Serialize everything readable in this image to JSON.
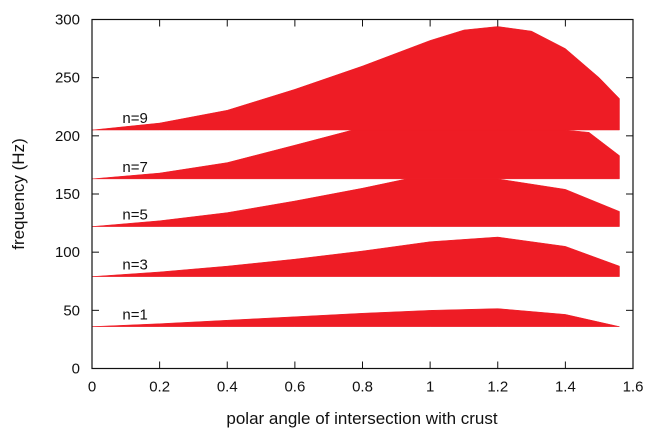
{
  "chart_data": {
    "type": "area",
    "xlabel": "polar angle of intersection with crust",
    "ylabel": "frequency (Hz)",
    "xlim": [
      0,
      1.6
    ],
    "ylim": [
      0,
      300
    ],
    "xticks": [
      "0",
      "0.2",
      "0.4",
      "0.6",
      "0.8",
      "1",
      "1.2",
      "1.4",
      "1.6"
    ],
    "yticks": [
      "0",
      "50",
      "100",
      "150",
      "200",
      "250",
      "300"
    ],
    "grid": false,
    "fill_color": "#ee1c25",
    "series": [
      {
        "name": "n=1",
        "x": [
          0,
          0.2,
          0.4,
          0.6,
          0.8,
          1.0,
          1.2,
          1.4,
          1.56
        ],
        "lower": [
          36,
          36,
          36,
          36,
          36,
          36,
          36,
          36,
          36
        ],
        "upper": [
          36,
          38.5,
          41.5,
          44.5,
          47.5,
          50,
          51.5,
          46.5,
          36
        ]
      },
      {
        "name": "n=3",
        "x": [
          0,
          0.2,
          0.4,
          0.6,
          0.8,
          1.0,
          1.2,
          1.4,
          1.56
        ],
        "lower": [
          79,
          79,
          79,
          79,
          79,
          79,
          79,
          79,
          79
        ],
        "upper": [
          79,
          83,
          88,
          94,
          101,
          109,
          113,
          105,
          88
        ]
      },
      {
        "name": "n=5",
        "x": [
          0,
          0.2,
          0.4,
          0.6,
          0.8,
          0.93,
          1.0,
          1.2,
          1.4,
          1.56
        ],
        "lower": [
          122,
          122,
          122,
          122,
          122,
          122,
          122,
          122,
          122,
          122
        ],
        "upper": [
          122,
          127,
          134,
          144,
          155,
          163,
          163,
          163,
          154,
          135
        ]
      },
      {
        "name": "n=7",
        "x": [
          0,
          0.2,
          0.4,
          0.6,
          0.77,
          0.8,
          1.0,
          1.2,
          1.4,
          1.47,
          1.56
        ],
        "lower": [
          163,
          163,
          163,
          163,
          163,
          163,
          163,
          163,
          163,
          163,
          163
        ],
        "upper": [
          163,
          168,
          177,
          192,
          205,
          205,
          205,
          205,
          205,
          203,
          183
        ]
      },
      {
        "name": "n=9",
        "x": [
          0,
          0.2,
          0.4,
          0.6,
          0.8,
          1.0,
          1.1,
          1.2,
          1.3,
          1.4,
          1.5,
          1.56
        ],
        "lower": [
          205,
          205,
          205,
          205,
          205,
          205,
          205,
          205,
          205,
          205,
          205,
          205
        ],
        "upper": [
          205,
          211,
          222,
          240,
          260,
          282,
          291,
          294,
          290,
          275,
          250,
          232
        ]
      }
    ]
  }
}
